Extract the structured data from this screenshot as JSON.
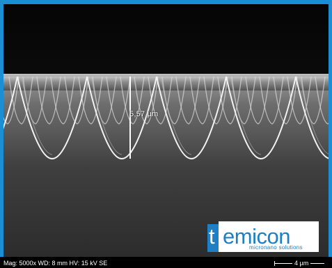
{
  "image": {
    "measurement_label": "5,57 µm",
    "logo": {
      "wordmark": "temicon",
      "tagline": "micronano solutions"
    },
    "footer": {
      "info": "Mag: 5000x  WD: 8 mm    HV: 15 kV SE",
      "scale_label": "4 µm"
    },
    "colors": {
      "frame": "#1a8fd6",
      "logo": "#1f7fc4"
    }
  }
}
